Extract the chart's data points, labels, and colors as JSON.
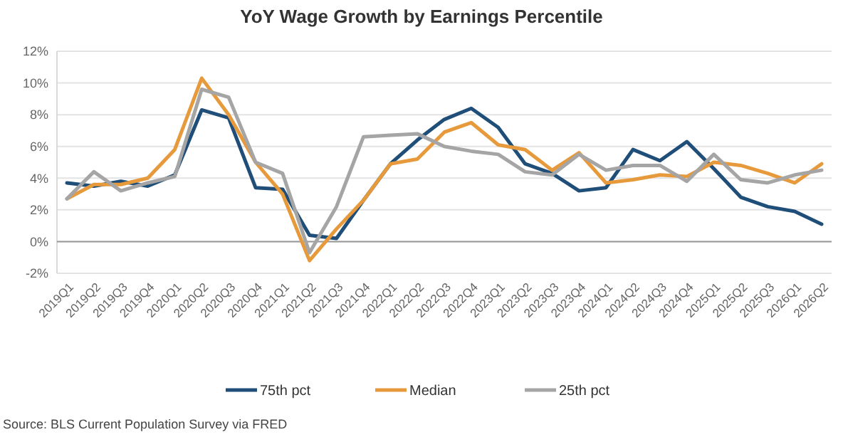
{
  "chart_data": {
    "type": "line",
    "title": "YoY Wage Growth by Earnings Percentile",
    "categories": [
      "2019Q1",
      "2019Q2",
      "2019Q3",
      "2019Q4",
      "2020Q1",
      "2020Q2",
      "2020Q3",
      "2020Q4",
      "2021Q1",
      "2021Q2",
      "2021Q3",
      "2021Q4",
      "2022Q1",
      "2022Q2",
      "2022Q3",
      "2022Q4",
      "2023Q1",
      "2023Q2",
      "2023Q3",
      "2023Q4",
      "2024Q1",
      "2024Q2",
      "2024Q3",
      "2024Q4",
      "2025Q1",
      "2025Q2",
      "2025Q3",
      "2026Q1",
      "2026Q2"
    ],
    "series": [
      {
        "name": "75th pct",
        "color": "#1f4e79",
        "values": [
          3.7,
          3.5,
          3.8,
          3.5,
          4.2,
          8.3,
          7.8,
          3.4,
          3.3,
          0.4,
          0.2,
          2.6,
          4.9,
          6.4,
          7.7,
          8.4,
          7.2,
          4.9,
          4.3,
          3.2,
          3.4,
          5.8,
          5.1,
          6.3,
          4.6,
          2.8,
          2.2,
          1.9,
          1.1
        ]
      },
      {
        "name": "Median",
        "color": "#e69a3c",
        "values": [
          2.7,
          3.6,
          3.6,
          4.0,
          5.8,
          10.3,
          8.0,
          5.0,
          3.0,
          -1.2,
          0.8,
          2.6,
          4.9,
          5.2,
          6.9,
          7.5,
          6.1,
          5.8,
          4.5,
          5.6,
          3.7,
          3.9,
          4.2,
          4.1,
          5.0,
          4.8,
          4.3,
          3.7,
          4.9
        ]
      },
      {
        "name": "25th pct",
        "color": "#a5a5a5",
        "values": [
          2.7,
          4.4,
          3.2,
          3.7,
          4.1,
          9.6,
          9.1,
          5.0,
          4.3,
          -0.7,
          2.2,
          6.6,
          6.7,
          6.8,
          6.0,
          5.7,
          5.5,
          4.4,
          4.2,
          5.5,
          4.5,
          4.8,
          4.8,
          3.8,
          5.5,
          3.9,
          3.7,
          4.2,
          4.5
        ]
      }
    ],
    "ylim": [
      -2,
      12
    ],
    "yticks": [
      {
        "value": -2,
        "label": "-2%"
      },
      {
        "value": 0,
        "label": "0%"
      },
      {
        "value": 2,
        "label": "2%"
      },
      {
        "value": 4,
        "label": "4%"
      },
      {
        "value": 6,
        "label": "6%"
      },
      {
        "value": 8,
        "label": "8%"
      },
      {
        "value": 10,
        "label": "10%"
      },
      {
        "value": 12,
        "label": "12%"
      }
    ],
    "grid": "y",
    "legend": "bottom",
    "line_style": "solid",
    "annotations": [
      "Source: BLS Current Population Survey via FRED"
    ]
  }
}
